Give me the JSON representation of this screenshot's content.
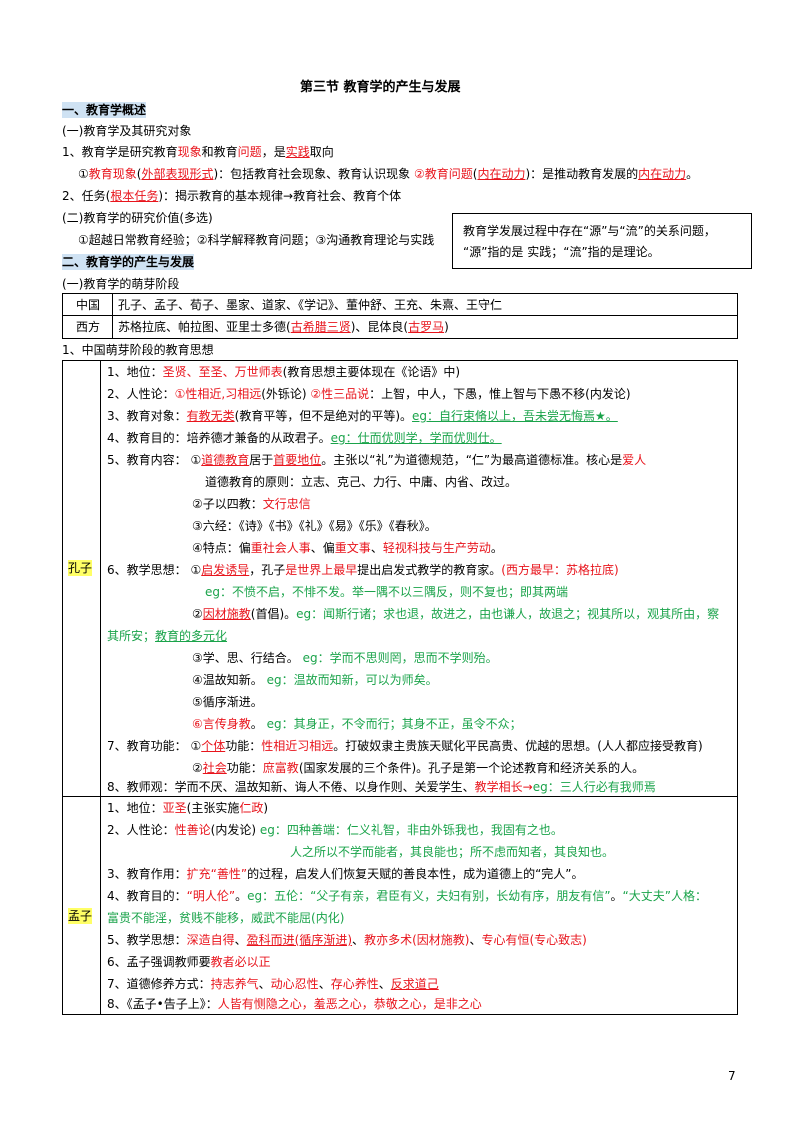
{
  "title": "第三节   教育学的产生与发展",
  "s1": "一、教育学概述",
  "s1_1": "(一)教育学及其研究对象",
  "p1": [
    "1、教育学是研究教育",
    "现象",
    "和教育",
    "问题",
    "，是",
    "实践",
    "取向"
  ],
  "p2": [
    "①",
    "教育现象",
    "(",
    "外部表现形式",
    ")：包括教育社会现象、教育认识现象 ",
    "②教育问题",
    "(",
    "内在动力",
    ")：是推动教育发展的",
    "内在动力",
    "。"
  ],
  "p3": [
    "2、任务(",
    "根本任务",
    ")：揭示教育的基本规律→教育社会、教育个体"
  ],
  "s1_2": "(二)教育学的研究价值(多选)",
  "p4": "①超越日常教育经验；②科学解释教育问题；③沟通教育理论与实践",
  "note": [
    "教育学发展过程中存在“源”与“流”的关系问题，",
    "“源”指的是 实践；“流”指的是理论。"
  ],
  "s2": "二、教育学的产生与发展",
  "s2_1": "(一)教育学的萌芽阶段",
  "t1": [
    {
      "k": "中国",
      "v": "孔子、孟子、荀子、墨家、道家、《学记》、董仲舒、王充、朱熹、王守仁"
    },
    {
      "k": "西方",
      "v1": "苏格拉底、帕拉图、亚里士多德(",
      "v2": "古希腊三贤",
      "v3": ")、昆体良(",
      "v4": "古罗马",
      "v5": ")"
    }
  ],
  "s2_2": "1、中国萌芽阶段的教育思想",
  "kz": {
    "name": "孔子",
    "l1": [
      "1、地位：",
      "圣贤、至圣、万世师表",
      "(教育思想主要体现在《论语》中)"
    ],
    "l2": [
      "2、人性论：",
      "①性相近,习相远",
      "(外铄论) ",
      "②性三品说",
      "：上智，中人，下愚，惟上智与下愚不移(内发论)"
    ],
    "l3": [
      "3、教育对象：",
      "有教无类",
      "(教育平等，但不是绝对的平等)。",
      "eg：自行束脩以上，吾未尝无悔焉★。"
    ],
    "l4": [
      "4、教育目的：培养德才兼备的从政君子。",
      "eg：仕而优则学，学而优则仕。"
    ],
    "l5": [
      "5、教育内容：  ①",
      "道德教育",
      "居于",
      "首要地位",
      "。主张以“礼”为道德规范，“仁”为最高道德标准。核心是",
      "爱人"
    ],
    "l6": "道德教育的原则：立志、克己、力行、中庸、内省、改过。",
    "l7": [
      "②子以四教：",
      "文行忠信"
    ],
    "l8": "③六经：《诗》《书》《礼》《易》《乐》《春秋》。",
    "l9": [
      "④特点：偏",
      "重社会人事",
      "、偏",
      "重文事",
      "、",
      "轻视科技与生产劳动",
      "。"
    ],
    "l10": [
      "6、教学思想：  ①",
      "启发诱导",
      "，孔子",
      "是世界上最早",
      "提出启发式教学的教育家。",
      "(西方最早：苏格拉底)"
    ],
    "l11": "eg：不愤不启，不悱不发。举一隅不以三隅反，则不复也；即其两端",
    "l12": [
      "②",
      "因材施教",
      "(首倡)。",
      "eg：闻斯行诸；求也退，故进之，由也谦人，故退之；视其所以，观其所由，察"
    ],
    "l13": [
      "其所安；",
      "教育的多元化"
    ],
    "l14": [
      "③学、思、行结合。  ",
      "eg：学而不思则罔，思而不学则殆。"
    ],
    "l15": [
      "④温故知新。  ",
      "eg：温故而知新，可以为师矣。"
    ],
    "l16": "⑤循序渐进。",
    "l17": [
      "⑥言传身教",
      "。  ",
      "eg：其身正，不令而行；其身不正，虽令不众；"
    ],
    "l18": [
      "7、教育功能：  ①",
      "个体",
      "功能：",
      "性相近习相远",
      "。打破奴隶主贵族天赋化平民高贵、优越的思想。(人人都应接受教育)"
    ],
    "l19": [
      "②",
      "社会",
      "功能：",
      "庶富教",
      "(国家发展的三个条件)。孔子是第一个论述教育和经济关系的人。"
    ],
    "l20": [
      "8、教师观：学而不厌、温故知新、诲人不倦、以身作则、关爱学生、",
      "教学相长→",
      "eg：三人行必有我师焉"
    ]
  },
  "mz": {
    "name": "孟子",
    "l1": [
      "1、地位：",
      "亚圣",
      "(主张实施",
      "仁政",
      ")"
    ],
    "l2": [
      "2、人性论：",
      "性善论",
      "(内发论)  ",
      "eg：四种善端：仁义礼智，非由外铄我也，我固有之也。"
    ],
    "l3": "人之所以不学而能者，其良能也；所不虑而知者，其良知也。",
    "l4": [
      "3、教育作用：",
      "扩充“善性”",
      "的过程，启发人们恢复天赋的善良本性，成为道德上的“完人”。"
    ],
    "l5": [
      "4、教育目的：",
      "“明人伦”",
      "。",
      "eg：五伦：“父子有亲，君臣有义，夫妇有别，长幼有序，朋友有信”",
      "。",
      "“大丈夫”",
      "人格："
    ],
    "l6": [
      "富贵不能淫，贫贱不能移，威武不能屈",
      "(内化)"
    ],
    "l7": [
      "5、教学思想：",
      "深造自得",
      "、",
      "盈科而进(循序渐进)",
      "、",
      "教亦多术(因材施教)",
      "、",
      "专心有恒(专心致志)"
    ],
    "l8": [
      "6、孟子强调教师要",
      "教者必以正"
    ],
    "l9": [
      "7、道德修养方式：",
      "持志养气",
      "、",
      "动心忍性",
      "、",
      "存心养性",
      "、",
      "反求道己"
    ],
    "l10": [
      "8、《孟子•告子上》：",
      "人皆有恻隐之心，羞恶之心，恭敬之心，是非之心"
    ]
  },
  "page_number": "7"
}
